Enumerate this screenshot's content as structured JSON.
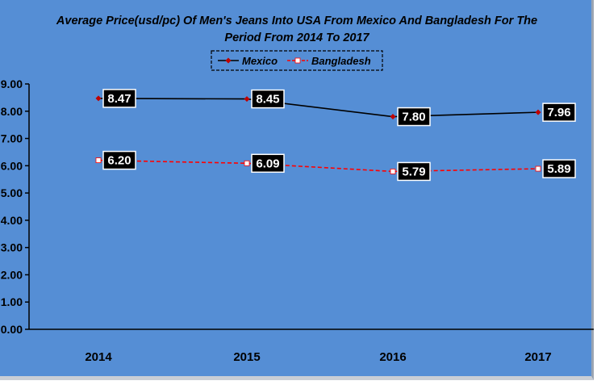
{
  "chart_data": {
    "type": "line",
    "title_line1": "Average Price(usd/pc) Of Men's Jeans Into USA From Mexico And Bangladesh For The",
    "title_line2": "Period From 2014 To 2017",
    "categories": [
      "2014",
      "2015",
      "2016",
      "2017"
    ],
    "series": [
      {
        "name": "Mexico",
        "values": [
          8.47,
          8.45,
          7.8,
          7.96
        ],
        "color": "#000000",
        "marker_color": "#c00000",
        "dashed": false,
        "labels": [
          "8.47",
          "8.45",
          "7.80",
          "7.96"
        ]
      },
      {
        "name": "Bangladesh",
        "values": [
          6.2,
          6.09,
          5.79,
          5.89
        ],
        "color": "#ff0000",
        "marker_color": "#ffffff",
        "dashed": true,
        "labels": [
          "6.20",
          "6.09",
          "5.79",
          "5.89"
        ]
      }
    ],
    "ylim": [
      0,
      9
    ],
    "y_ticks": [
      "0.00",
      "1.00",
      "2.00",
      "3.00",
      "4.00",
      "5.00",
      "6.00",
      "7.00",
      "8.00",
      "9.00"
    ],
    "xlabel": "",
    "ylabel": "",
    "grid": false,
    "legend_position": "top",
    "colors": {
      "background": "#558ed5",
      "axis": "#000000"
    }
  }
}
